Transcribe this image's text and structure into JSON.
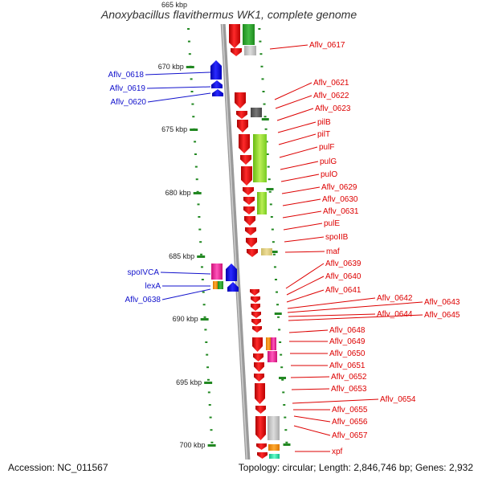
{
  "title": "Anoxybacillus flavithermus WK1, complete genome",
  "footer": {
    "accession": "Accession: NC_011567",
    "topology": "Topology: circular; Length: 2,846,746 bp; Genes: 2,932"
  },
  "scale": {
    "labels": [
      "665 kbp",
      "670 kbp",
      "675 kbp",
      "680 kbp",
      "685 kbp",
      "690 kbp",
      "695 kbp",
      "700 kbp"
    ]
  },
  "colors": {
    "forward_gene": "#ee1111",
    "reverse_gene": "#1111ee",
    "right_label": "#dd0000",
    "left_label": "#1111cc",
    "tick": "#228822",
    "backbone": "#888888"
  },
  "left_labels": [
    "Aflv_0618",
    "Aflv_0619",
    "Aflv_0620",
    "spoIVCA",
    "lexA",
    "Aflv_0638"
  ],
  "right_labels": [
    "Aflv_0617",
    "Aflv_0621",
    "Aflv_0622",
    "Aflv_0623",
    "pilB",
    "pilT",
    "pulF",
    "pulG",
    "pulO",
    "Aflv_0629",
    "Aflv_0630",
    "Aflv_0631",
    "pulE",
    "spoIIB",
    "maf",
    "Aflv_0639",
    "Aflv_0640",
    "Aflv_0641",
    "Aflv_0642",
    "Aflv_0643",
    "Aflv_0644",
    "Aflv_0645",
    "Aflv_0648",
    "Aflv_0649",
    "Aflv_0650",
    "Aflv_0651",
    "Aflv_0652",
    "Aflv_0653",
    "Aflv_0654",
    "Aflv_0655",
    "Aflv_0656",
    "Aflv_0657",
    "xpf"
  ]
}
